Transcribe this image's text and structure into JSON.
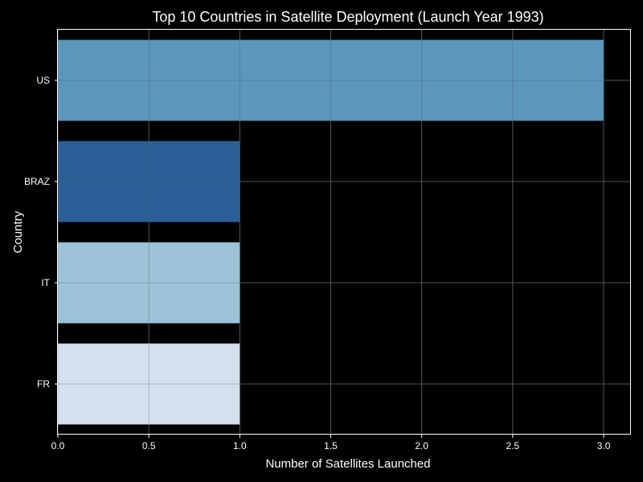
{
  "chart_data": {
    "type": "bar",
    "orientation": "horizontal",
    "title": "Top 10 Countries in Satellite Deployment (Launch Year 1993)",
    "xlabel": "Number of Satellites Launched",
    "ylabel": "Country",
    "categories": [
      "US",
      "BRAZ",
      "IT",
      "FR"
    ],
    "values": [
      3,
      1,
      1,
      1
    ],
    "bar_colors": [
      "#5b96bb",
      "#2a6097",
      "#9cc3d7",
      "#d3e1ef"
    ],
    "xlim": [
      0,
      3.15
    ],
    "xticks": [
      0.0,
      0.5,
      1.0,
      1.5,
      2.0,
      2.5,
      3.0
    ],
    "xtick_labels": [
      "0.0",
      "0.5",
      "1.0",
      "1.5",
      "2.0",
      "2.5",
      "3.0"
    ],
    "grid": true,
    "background": "#000000",
    "grid_color": "#5a5a5a",
    "text_color": "#ffffff"
  }
}
